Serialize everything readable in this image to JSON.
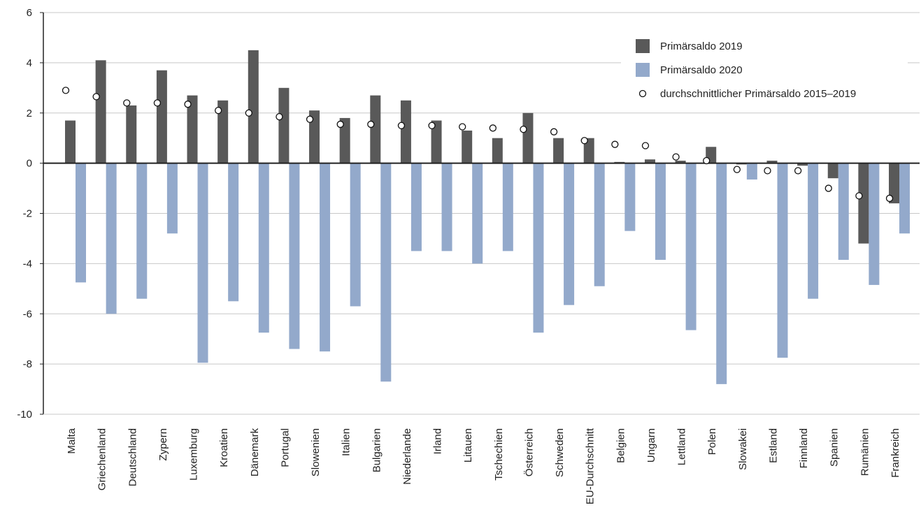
{
  "chart_data": {
    "type": "bar",
    "categories": [
      "Malta",
      "Griechenland",
      "Deutschland",
      "Zypern",
      "Luxemburg",
      "Kroatien",
      "Dänemark",
      "Portugal",
      "Slowenien",
      "Italien",
      "Bulgarien",
      "Niederlande",
      "Irland",
      "Litauen",
      "Tschechien",
      "Österreich",
      "Schweden",
      "EU-Durchschnitt",
      "Belgien",
      "Ungarn",
      "Lettland",
      "Polen",
      "Slowakei",
      "Estland",
      "Finnland",
      "Spanien",
      "Rumänien",
      "Frankreich"
    ],
    "series": [
      {
        "name": "Primärsaldo 2019",
        "kind": "bar",
        "color": "#595959",
        "values": [
          1.7,
          4.1,
          2.3,
          3.7,
          2.7,
          2.5,
          4.5,
          3.0,
          2.1,
          1.8,
          2.7,
          2.5,
          1.7,
          1.3,
          1.0,
          2.0,
          1.0,
          1.0,
          0.05,
          0.15,
          0.1,
          0.65,
          -0.05,
          0.1,
          -0.1,
          -0.6,
          -3.2,
          -1.6
        ]
      },
      {
        "name": "Primärsaldo 2020",
        "kind": "bar",
        "color": "#93a9cb",
        "values": [
          -4.75,
          -6.0,
          -5.4,
          -2.8,
          -7.95,
          -5.5,
          -6.75,
          -7.4,
          -7.5,
          -5.7,
          -8.7,
          -3.5,
          -3.5,
          -4.0,
          -3.5,
          -6.75,
          -5.65,
          -4.9,
          -2.7,
          -3.85,
          -6.65,
          -8.8,
          -0.65,
          -7.75,
          -5.4,
          -3.85,
          -4.85,
          -2.8
        ]
      },
      {
        "name": "durchschnittlicher Primärsaldo 2015–2019",
        "kind": "marker",
        "color": "#ffffff",
        "values": [
          2.9,
          2.65,
          2.4,
          2.4,
          2.35,
          2.1,
          2.0,
          1.85,
          1.75,
          1.55,
          1.55,
          1.5,
          1.5,
          1.45,
          1.4,
          1.35,
          1.25,
          0.9,
          0.75,
          0.7,
          0.25,
          0.1,
          -0.25,
          -0.3,
          -0.3,
          -1.0,
          -1.3,
          -1.4
        ]
      }
    ],
    "ylim": [
      -10,
      6
    ],
    "yticks": [
      "6",
      "4",
      "2",
      "0",
      "-2",
      "-4",
      "-6",
      "-8",
      "-10"
    ],
    "ytick_values": [
      6,
      4,
      2,
      0,
      -2,
      -4,
      -6,
      -8,
      -10
    ],
    "grid": true,
    "legend_position": "top-right"
  }
}
